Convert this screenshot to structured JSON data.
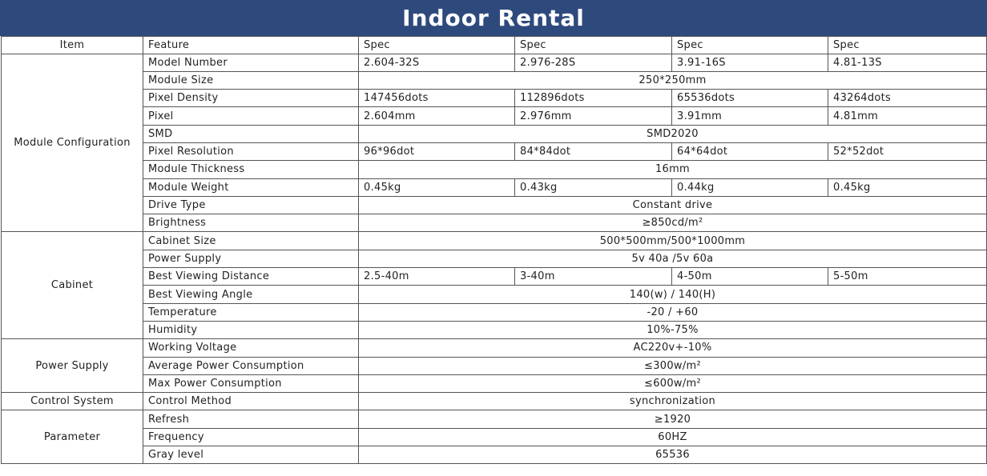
{
  "title": "Indoor Rental",
  "colors": {
    "header_bg": "#2e4a7d",
    "header_text": "#ffffff",
    "border": "#555555"
  },
  "headers": [
    "Item",
    "Feature",
    "Spec",
    "Spec",
    "Spec",
    "Spec"
  ],
  "groups": [
    {
      "item": "Module Configuration",
      "rows": [
        {
          "feature": "Model Number",
          "specs": [
            "2.604-32S",
            "2.976-28S",
            "3.91-16S",
            "4.81-13S"
          ]
        },
        {
          "feature": "Module Size",
          "specs": [
            "250*250mm"
          ]
        },
        {
          "feature": "Pixel Density",
          "specs": [
            "147456dots",
            "112896dots",
            "65536dots",
            "43264dots"
          ]
        },
        {
          "feature": "Pixel",
          "specs": [
            "2.604mm",
            "2.976mm",
            "3.91mm",
            "4.81mm"
          ]
        },
        {
          "feature": "SMD",
          "specs": [
            "SMD2020"
          ]
        },
        {
          "feature": "Pixel Resolution",
          "specs": [
            "96*96dot",
            "84*84dot",
            "64*64dot",
            "52*52dot"
          ]
        },
        {
          "feature": "Module Thickness",
          "specs": [
            "16mm"
          ]
        },
        {
          "feature": "Module Weight",
          "specs": [
            "0.45kg",
            "0.43kg",
            "0.44kg",
            "0.45kg"
          ]
        },
        {
          "feature": "Drive Type",
          "specs": [
            "Constant drive"
          ]
        },
        {
          "feature": "Brightness",
          "specs": [
            "≥850cd/m²"
          ]
        }
      ]
    },
    {
      "item": "Cabinet",
      "rows": [
        {
          "feature": "Cabinet Size",
          "specs": [
            "500*500mm/500*1000mm"
          ]
        },
        {
          "feature": "Power Supply",
          "specs": [
            "5v 40a /5v 60a"
          ]
        },
        {
          "feature": "Best Viewing Distance",
          "specs": [
            "2.5-40m",
            "3-40m",
            "4-50m",
            "5-50m"
          ]
        },
        {
          "feature": "Best Viewing Angle",
          "specs": [
            "140(w) / 140(H)"
          ]
        },
        {
          "feature": "Temperature",
          "specs": [
            "-20 / +60"
          ]
        },
        {
          "feature": "Humidity",
          "specs": [
            "10%-75%"
          ]
        }
      ]
    },
    {
      "item": "Power Supply",
      "rows": [
        {
          "feature": "Working Voltage",
          "specs": [
            "AC220v+-10%"
          ]
        },
        {
          "feature": "Average Power Consumption",
          "specs": [
            "≤300w/m²"
          ]
        },
        {
          "feature": "Max Power Consumption",
          "specs": [
            "≤600w/m²"
          ]
        }
      ]
    },
    {
      "item": "Control System",
      "rows": [
        {
          "feature": "Control Method",
          "specs": [
            "synchronization"
          ]
        }
      ]
    },
    {
      "item": "Parameter",
      "rows": [
        {
          "feature": "Refresh",
          "specs": [
            "≥1920"
          ]
        },
        {
          "feature": "Frequency",
          "specs": [
            "60HZ"
          ]
        },
        {
          "feature": "Gray level",
          "specs": [
            "65536"
          ]
        }
      ]
    }
  ]
}
